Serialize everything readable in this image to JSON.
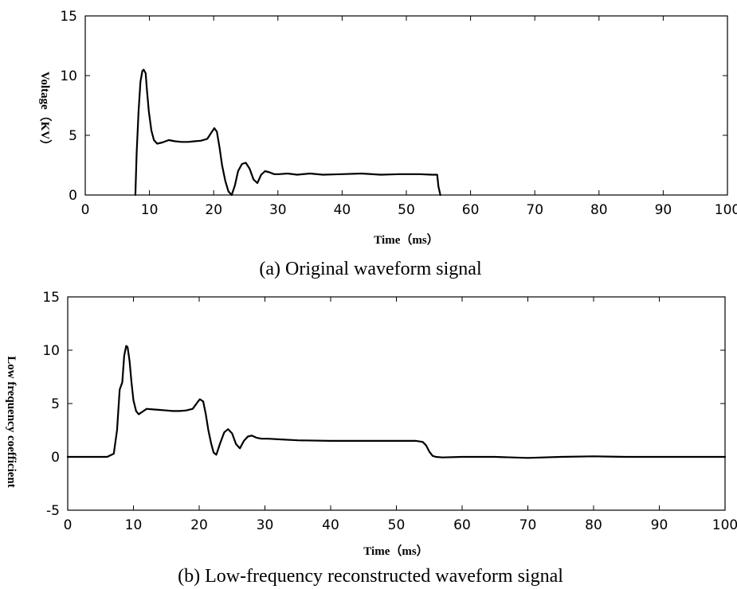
{
  "chart_data": [
    {
      "type": "line",
      "caption": "(a) Original waveform signal",
      "xlabel": "Time（ms）",
      "ylabel": "Voltage（KV）",
      "xlim": [
        0,
        100
      ],
      "ylim": [
        0,
        15
      ],
      "xticks": [
        0,
        10,
        20,
        30,
        40,
        50,
        60,
        70,
        80,
        90,
        100
      ],
      "yticks": [
        0,
        5,
        10,
        15
      ],
      "grid": false,
      "series": [
        {
          "x": [
            7.8,
            8.0,
            8.3,
            8.6,
            8.9,
            9.1,
            9.4,
            9.6,
            9.9,
            10.3,
            10.7,
            11.2,
            12.0,
            13.0,
            14.0,
            15.0,
            16.0,
            17.0,
            18.0,
            19.0,
            19.6,
            20.1,
            20.5,
            20.9,
            21.3,
            21.8,
            22.3,
            22.8,
            23.3,
            23.8,
            24.4,
            25.0,
            25.6,
            26.2,
            26.8,
            27.4,
            28.0,
            28.7,
            29.4,
            30.2,
            31.5,
            33.0,
            35.0,
            37.0,
            40.0,
            43.0,
            46.0,
            49.0,
            52.0,
            54.0,
            54.8,
            55.0,
            55.3
          ],
          "y": [
            0,
            3.5,
            7.0,
            9.5,
            10.4,
            10.5,
            10.2,
            8.8,
            7.0,
            5.4,
            4.6,
            4.3,
            4.4,
            4.6,
            4.5,
            4.45,
            4.45,
            4.5,
            4.55,
            4.7,
            5.2,
            5.6,
            5.3,
            4.0,
            2.5,
            1.2,
            0.3,
            0.0,
            0.8,
            2.0,
            2.6,
            2.7,
            2.2,
            1.3,
            1.0,
            1.7,
            2.0,
            1.9,
            1.75,
            1.75,
            1.8,
            1.7,
            1.8,
            1.7,
            1.75,
            1.8,
            1.7,
            1.75,
            1.75,
            1.7,
            1.7,
            0.7,
            0.0
          ]
        }
      ]
    },
    {
      "type": "line",
      "caption": "(b) Low-frequency reconstructed waveform signal",
      "xlabel": "Time（ms）",
      "ylabel": "Low frequency coefficient",
      "xlim": [
        0,
        100
      ],
      "ylim": [
        -5,
        15
      ],
      "xticks": [
        0,
        10,
        20,
        30,
        40,
        50,
        60,
        70,
        80,
        90,
        100
      ],
      "yticks": [
        -5,
        0,
        5,
        10,
        15
      ],
      "grid": false,
      "series": [
        {
          "x": [
            0,
            3,
            6,
            7.0,
            7.5,
            7.9,
            8.3,
            8.6,
            8.9,
            9.1,
            9.4,
            9.7,
            10.0,
            10.4,
            10.8,
            11.3,
            12.0,
            13.0,
            14.0,
            15.0,
            16.0,
            17.0,
            18.0,
            19.0,
            19.6,
            20.1,
            20.6,
            21.0,
            21.4,
            21.8,
            22.2,
            22.6,
            23.2,
            23.8,
            24.4,
            25.0,
            25.6,
            26.2,
            26.8,
            27.4,
            28.0,
            28.7,
            29.5,
            30.5,
            32.0,
            35.0,
            40.0,
            45.0,
            50.0,
            53.0,
            54.0,
            54.5,
            55.0,
            55.5,
            56.0,
            57.0,
            60.0,
            65.0,
            70.0,
            75.0,
            80.0,
            85.0,
            90.0,
            95.0,
            100.0
          ],
          "y": [
            0.0,
            0.0,
            0.0,
            0.3,
            2.5,
            6.3,
            7.0,
            9.5,
            10.4,
            10.3,
            9.0,
            7.0,
            5.3,
            4.3,
            4.0,
            4.2,
            4.5,
            4.45,
            4.4,
            4.35,
            4.3,
            4.3,
            4.35,
            4.5,
            5.0,
            5.4,
            5.2,
            4.0,
            2.5,
            1.3,
            0.4,
            0.2,
            1.3,
            2.3,
            2.6,
            2.2,
            1.2,
            0.8,
            1.5,
            1.9,
            2.0,
            1.8,
            1.7,
            1.7,
            1.65,
            1.55,
            1.5,
            1.5,
            1.5,
            1.5,
            1.4,
            1.1,
            0.5,
            0.1,
            0.0,
            -0.05,
            0.0,
            0.0,
            -0.1,
            0.0,
            0.05,
            0.0,
            0.0,
            0.0,
            0.0
          ]
        }
      ]
    }
  ]
}
